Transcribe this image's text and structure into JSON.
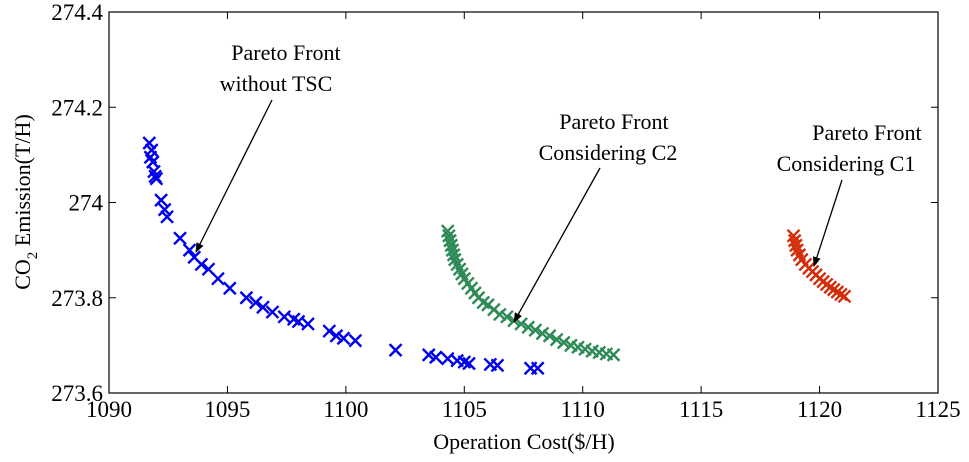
{
  "chart_data": {
    "type": "scatter",
    "title": "",
    "xlabel": "Operation Cost($/H)",
    "ylabel_main": "CO",
    "ylabel_sub": "2",
    "ylabel_rest": " Emission(T/H)",
    "xlim": [
      1090,
      1125
    ],
    "ylim": [
      273.6,
      274.4
    ],
    "xticks": [
      1090,
      1095,
      1100,
      1105,
      1110,
      1115,
      1120,
      1125
    ],
    "yticks": [
      273.6,
      273.8,
      274,
      274.2,
      274.4
    ],
    "xtick_labels": [
      "1090",
      "1095",
      "1100",
      "1105",
      "1110",
      "1115",
      "1120",
      "1125"
    ],
    "ytick_labels": [
      "273.6",
      "273.8",
      "274",
      "274.2",
      "274.4"
    ],
    "marker": "x",
    "series": [
      {
        "name": "Pareto Front without TSC",
        "color": "#0000ee",
        "points": [
          [
            1091.7,
            274.125
          ],
          [
            1091.8,
            274.11
          ],
          [
            1091.75,
            274.095
          ],
          [
            1091.85,
            274.085
          ],
          [
            1091.9,
            274.065
          ],
          [
            1091.95,
            274.055
          ],
          [
            1092.0,
            274.05
          ],
          [
            1092.2,
            274.005
          ],
          [
            1092.35,
            273.985
          ],
          [
            1092.45,
            273.97
          ],
          [
            1093.0,
            273.925
          ],
          [
            1093.4,
            273.9
          ],
          [
            1093.6,
            273.885
          ],
          [
            1093.9,
            273.87
          ],
          [
            1094.2,
            273.86
          ],
          [
            1094.6,
            273.84
          ],
          [
            1095.1,
            273.82
          ],
          [
            1095.8,
            273.8
          ],
          [
            1096.2,
            273.79
          ],
          [
            1096.5,
            273.78
          ],
          [
            1096.9,
            273.77
          ],
          [
            1097.4,
            273.76
          ],
          [
            1097.8,
            273.755
          ],
          [
            1098.0,
            273.75
          ],
          [
            1098.4,
            273.745
          ],
          [
            1099.3,
            273.73
          ],
          [
            1099.6,
            273.72
          ],
          [
            1099.9,
            273.715
          ],
          [
            1100.4,
            273.71
          ],
          [
            1102.1,
            273.69
          ],
          [
            1103.5,
            273.68
          ],
          [
            1103.8,
            273.675
          ],
          [
            1104.3,
            273.672
          ],
          [
            1104.7,
            273.668
          ],
          [
            1105.0,
            273.665
          ],
          [
            1105.2,
            273.662
          ],
          [
            1106.1,
            273.66
          ],
          [
            1106.4,
            273.658
          ],
          [
            1107.8,
            273.652
          ],
          [
            1108.1,
            273.652
          ]
        ]
      },
      {
        "name": "Pareto Front Considering C2",
        "color": "#2e8b57",
        "points": [
          [
            1104.3,
            273.94
          ],
          [
            1104.35,
            273.93
          ],
          [
            1104.4,
            273.92
          ],
          [
            1104.45,
            273.91
          ],
          [
            1104.5,
            273.9
          ],
          [
            1104.55,
            273.89
          ],
          [
            1104.6,
            273.88
          ],
          [
            1104.7,
            273.87
          ],
          [
            1104.8,
            273.86
          ],
          [
            1104.9,
            273.85
          ],
          [
            1105.0,
            273.84
          ],
          [
            1105.15,
            273.83
          ],
          [
            1105.3,
            273.82
          ],
          [
            1105.45,
            273.81
          ],
          [
            1105.6,
            273.8
          ],
          [
            1105.8,
            273.79
          ],
          [
            1106.0,
            273.785
          ],
          [
            1106.25,
            273.775
          ],
          [
            1106.5,
            273.765
          ],
          [
            1106.8,
            273.76
          ],
          [
            1107.1,
            273.752
          ],
          [
            1107.4,
            273.745
          ],
          [
            1107.7,
            273.738
          ],
          [
            1108.0,
            273.732
          ],
          [
            1108.3,
            273.725
          ],
          [
            1108.6,
            273.72
          ],
          [
            1108.9,
            273.712
          ],
          [
            1109.2,
            273.706
          ],
          [
            1109.5,
            273.7
          ],
          [
            1109.8,
            273.696
          ],
          [
            1110.1,
            273.692
          ],
          [
            1110.4,
            273.688
          ],
          [
            1110.7,
            273.685
          ],
          [
            1111.0,
            273.682
          ],
          [
            1111.3,
            273.68
          ]
        ]
      },
      {
        "name": "Pareto Front Considering C1",
        "color": "#d32d0a",
        "points": [
          [
            1118.9,
            273.93
          ],
          [
            1118.95,
            273.92
          ],
          [
            1119.0,
            273.91
          ],
          [
            1119.05,
            273.9
          ],
          [
            1119.15,
            273.89
          ],
          [
            1119.25,
            273.88
          ],
          [
            1119.4,
            273.87
          ],
          [
            1119.55,
            273.862
          ],
          [
            1119.7,
            273.855
          ],
          [
            1119.85,
            273.848
          ],
          [
            1120.0,
            273.84
          ],
          [
            1120.15,
            273.834
          ],
          [
            1120.3,
            273.828
          ],
          [
            1120.45,
            273.822
          ],
          [
            1120.6,
            273.817
          ],
          [
            1120.75,
            273.812
          ],
          [
            1120.9,
            273.807
          ],
          [
            1121.05,
            273.803
          ]
        ]
      }
    ],
    "annotations": [
      {
        "lines": [
          "Pareto Front",
          "without TSC"
        ],
        "arrow_tip": [
          1093.6,
          273.89
        ]
      },
      {
        "lines": [
          "Pareto Front",
          "Considering C2"
        ],
        "arrow_tip": [
          1107.2,
          273.75
        ]
      },
      {
        "lines": [
          "Pareto Front",
          "Considering C1"
        ],
        "arrow_tip": [
          1119.8,
          273.875
        ]
      }
    ]
  }
}
